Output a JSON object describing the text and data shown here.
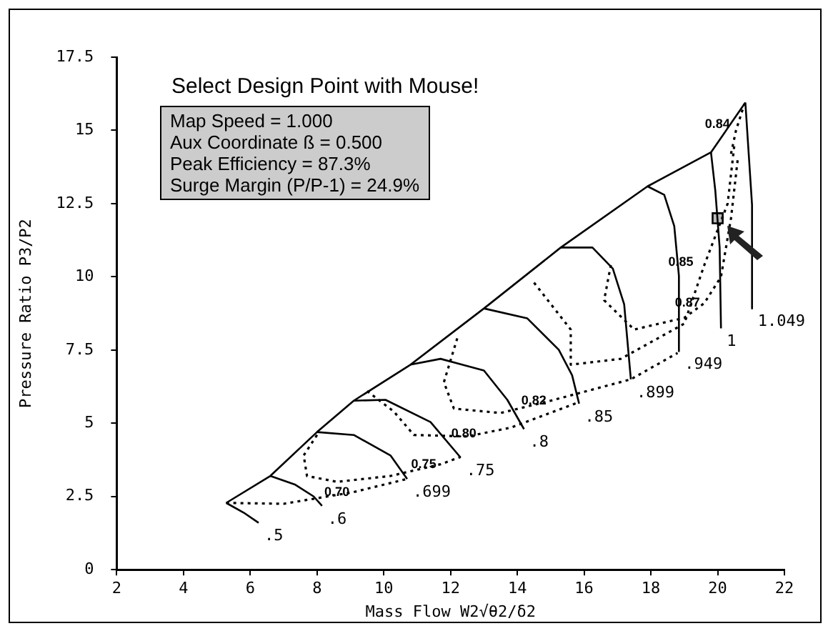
{
  "chart_data": {
    "type": "line",
    "title": "Select Design Point with Mouse!",
    "xlabel": "Mass Flow W2√θ2/δ2",
    "ylabel": "Pressure Ratio P3/P2",
    "xlim": [
      2,
      22
    ],
    "xticks": [
      2,
      4,
      6,
      8,
      10,
      12,
      14,
      16,
      18,
      20,
      22
    ],
    "ylim": [
      0,
      17.5
    ],
    "yticks": [
      0,
      2.5,
      5,
      7.5,
      10,
      12.5,
      15,
      17.5
    ],
    "grid": false,
    "legend": false,
    "marker": "none",
    "series": [
      {
        "color": "#000000",
        "line_style": "solid",
        "x": [
          5.28,
          6.6,
          8.0,
          9.1,
          10.8,
          13.0,
          15.3,
          17.9,
          19.8,
          20.83
        ],
        "values": [
          2.28,
          3.2,
          4.7,
          5.77,
          7.0,
          8.92,
          11.0,
          13.09,
          14.25,
          15.95
        ]
      },
      {
        "name": ".5",
        "color": "#000000",
        "line_style": "solid",
        "x": [
          5.28,
          5.8,
          6.25
        ],
        "values": [
          2.28,
          1.95,
          1.6
        ]
      },
      {
        "name": ".6",
        "color": "#000000",
        "line_style": "solid",
        "x": [
          6.6,
          7.35,
          7.9,
          8.15
        ],
        "values": [
          3.2,
          2.9,
          2.5,
          2.18
        ]
      },
      {
        "name": ".699",
        "color": "#000000",
        "line_style": "solid",
        "x": [
          8.0,
          9.1,
          10.2,
          10.7
        ],
        "values": [
          4.7,
          4.6,
          3.9,
          3.1
        ]
      },
      {
        "name": ".75",
        "color": "#000000",
        "line_style": "solid",
        "x": [
          9.1,
          10.05,
          11.4,
          12.3
        ],
        "values": [
          5.77,
          5.8,
          5.04,
          3.83
        ]
      },
      {
        "name": ".8",
        "color": "#000000",
        "line_style": "solid",
        "x": [
          10.8,
          11.7,
          13.0,
          13.7,
          14.2
        ],
        "values": [
          7.0,
          7.2,
          6.8,
          5.8,
          4.8
        ]
      },
      {
        "name": ".85",
        "color": "#000000",
        "line_style": "solid",
        "x": [
          13.0,
          14.3,
          15.24,
          15.64,
          15.85
        ],
        "values": [
          8.92,
          8.58,
          7.51,
          6.64,
          5.67
        ]
      },
      {
        "name": ".899",
        "color": "#000000",
        "line_style": "solid",
        "x": [
          15.3,
          16.25,
          16.86,
          17.2,
          17.4
        ],
        "values": [
          11.0,
          11.0,
          10.28,
          9.06,
          6.5
        ]
      },
      {
        "name": ".949",
        "color": "#000000",
        "line_style": "solid",
        "x": [
          17.9,
          18.4,
          18.7,
          18.84,
          18.84
        ],
        "values": [
          13.09,
          12.8,
          11.73,
          10.03,
          7.46
        ]
      },
      {
        "name": "1",
        "color": "#000000",
        "line_style": "solid",
        "x": [
          19.8,
          19.93,
          20.06,
          20.1
        ],
        "values": [
          14.25,
          12.94,
          11.0,
          8.24
        ]
      },
      {
        "name": "1.049",
        "color": "#000000",
        "line_style": "solid",
        "x": [
          20.83,
          21.03,
          21.03
        ],
        "values": [
          15.95,
          12.46,
          8.92
        ]
      },
      {
        "color": "#000000",
        "line_style": "dotted",
        "x": [
          5.28,
          7.0,
          9.1,
          10.7
        ],
        "values": [
          2.28,
          2.25,
          2.65,
          3.1
        ]
      },
      {
        "color": "#000000",
        "line_style": "dotted",
        "x": [
          8.0,
          7.6,
          7.7,
          8.6,
          10.2,
          11.7,
          12.3
        ],
        "values": [
          4.6,
          3.9,
          3.2,
          3.0,
          3.2,
          3.6,
          3.85
        ]
      },
      {
        "color": "#000000",
        "line_style": "dotted",
        "x": [
          9.5,
          10.3,
          10.9,
          12.5,
          13.8,
          15.8
        ],
        "values": [
          6.1,
          5.4,
          4.6,
          4.55,
          4.85,
          5.7
        ]
      },
      {
        "color": "#000000",
        "line_style": "dotted",
        "x": [
          12.2,
          11.8,
          12.1,
          13.5,
          15.0,
          17.4,
          18.8
        ],
        "values": [
          7.9,
          6.4,
          5.5,
          5.35,
          5.77,
          6.5,
          7.4
        ]
      },
      {
        "color": "#000000",
        "line_style": "dotted",
        "x": [
          14.5,
          15.6,
          15.6,
          17.1,
          19.0,
          19.6,
          20.3,
          20.5
        ],
        "values": [
          9.8,
          8.2,
          7.0,
          7.2,
          8.4,
          10.4,
          12.5,
          14.5
        ]
      },
      {
        "color": "#000000",
        "line_style": "dotted",
        "x": [
          16.8,
          16.6,
          17.5,
          19.0,
          19.6,
          20.1,
          20.4,
          20.6
        ],
        "values": [
          10.4,
          9.2,
          8.2,
          8.6,
          9.1,
          10.0,
          12.0,
          14.0
        ]
      },
      {
        "color": "#000000",
        "line_style": "dotted",
        "x": [
          20.4,
          20.55,
          20.8
        ],
        "values": [
          14.2,
          15.0,
          15.9
        ]
      },
      {
        "type": "scatter",
        "color": "#000000",
        "marker": "square",
        "x": [
          20.0
        ],
        "values": [
          12.0
        ]
      }
    ],
    "annotations": [
      "Map Speed = 1.000",
      "Aux Coordinate ß = 0.500",
      "Peak Efficiency = 87.3%",
      "Surge Margin (P/P-1) = 24.9%",
      {
        "text": "0.70",
        "x": 9.1,
        "y": 2.65
      },
      {
        "text": "0.75",
        "x": 11.7,
        "y": 3.6
      },
      {
        "text": "0.80",
        "x": 12.9,
        "y": 4.65
      },
      {
        "text": "0.82",
        "x": 15.0,
        "y": 5.77
      },
      {
        "text": "0.85",
        "x": 19.4,
        "y": 10.5
      },
      {
        "text": "0.87",
        "x": 19.6,
        "y": 9.1
      },
      {
        "text": "0.84",
        "x": 20.5,
        "y": 15.2
      }
    ]
  }
}
